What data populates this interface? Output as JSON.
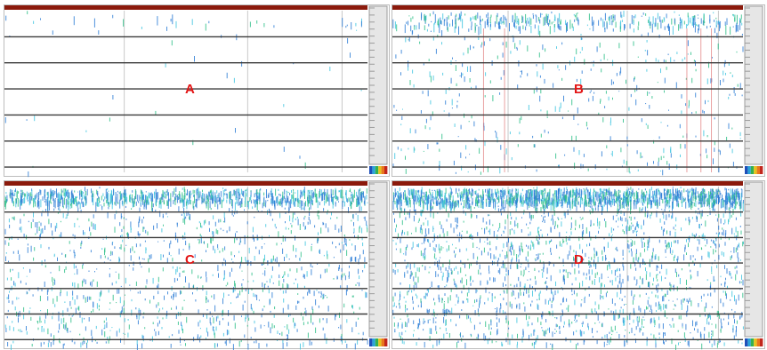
{
  "colors": {
    "title_bar": "#8b1a0c",
    "track_line": "#3a3a3a",
    "grid_line": "#c8c8c8",
    "scale_bar": "#9c9c9c",
    "signal_blue": "#2f7fd6",
    "signal_cyan": "#43c6e0",
    "signal_green": "#2fc08a",
    "marker_red": "#e07a7a",
    "label": "#e31515",
    "legend": [
      "#1f4fb8",
      "#2aa3d8",
      "#34b050",
      "#e6c21c",
      "#e8761d",
      "#c2261d"
    ]
  },
  "panels": [
    {
      "id": "A",
      "label": "A",
      "density": 0.02,
      "red_markers": false
    },
    {
      "id": "B",
      "label": "B",
      "density": 0.25,
      "red_markers": true
    },
    {
      "id": "C",
      "label": "C",
      "density": 0.65,
      "red_markers": false
    },
    {
      "id": "D",
      "label": "D",
      "density": 0.95,
      "red_markers": false
    }
  ]
}
